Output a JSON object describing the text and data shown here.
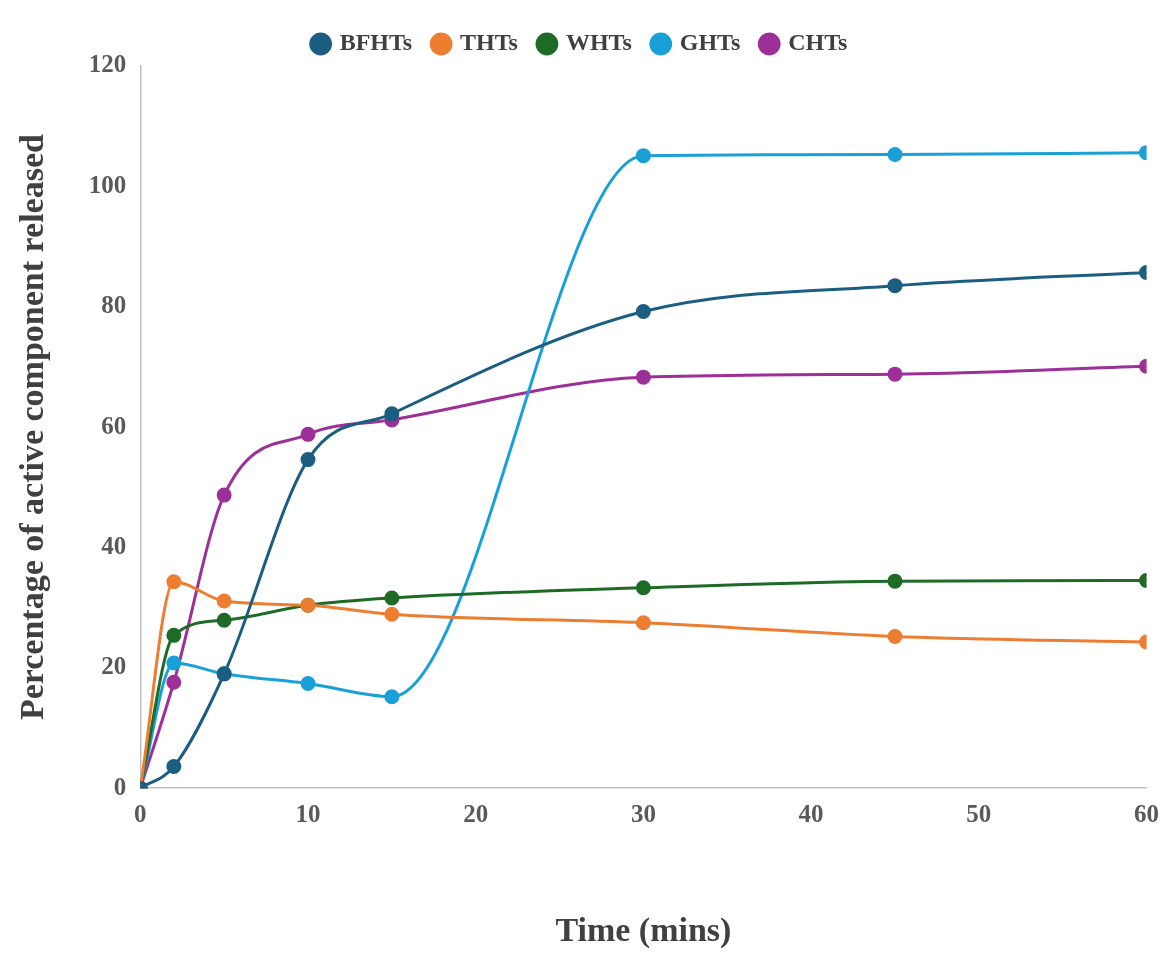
{
  "chart_data": {
    "type": "line",
    "xlabel": "Time (mins)",
    "ylabel": "Percentage of active component released",
    "x": [
      0,
      2,
      5,
      10,
      15,
      30,
      45,
      60
    ],
    "series": [
      {
        "name": "BFHTs",
        "color": "#1b5e82",
        "values": [
          0,
          3.6,
          19,
          54.6,
          62.2,
          79.2,
          83.5,
          85.7
        ]
      },
      {
        "name": "THTs",
        "color": "#ed7d31",
        "values": [
          0,
          34.3,
          31.1,
          30.4,
          28.9,
          27.5,
          25.2,
          24.3
        ]
      },
      {
        "name": "WHTs",
        "color": "#1e6b26",
        "values": [
          0,
          25.4,
          27.9,
          30.4,
          31.6,
          33.3,
          34.4,
          34.5
        ]
      },
      {
        "name": "GHTs",
        "color": "#1aa0d8",
        "values": [
          0,
          20.8,
          19,
          17.4,
          15.2,
          105.1,
          105.3,
          105.6
        ]
      },
      {
        "name": "CHTs",
        "color": "#9c2f98",
        "values": [
          0,
          17.6,
          48.7,
          58.8,
          61.2,
          68.3,
          68.8,
          70.1
        ]
      }
    ],
    "xlim": [
      0,
      60
    ],
    "xticks": [
      0,
      10,
      20,
      30,
      40,
      50,
      60
    ],
    "ylim": [
      0,
      120
    ],
    "yticks": [
      0,
      20,
      40,
      60,
      80,
      100,
      120
    ],
    "grid": false,
    "legend": "top",
    "marker": "circle",
    "line_style": "solid"
  }
}
